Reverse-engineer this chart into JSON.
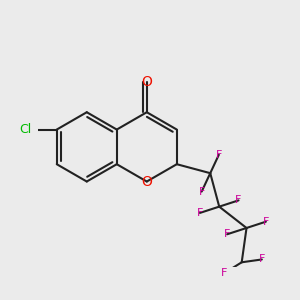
{
  "bg_color": "#ebebeb",
  "bond_color": "#222222",
  "oxygen_color": "#ee1100",
  "chlorine_color": "#00bb00",
  "fluorine_color": "#cc0099",
  "bond_lw": 1.5,
  "figsize": [
    3.0,
    3.0
  ],
  "dpi": 100,
  "xlim": [
    -0.5,
    9.5
  ],
  "ylim": [
    -3.0,
    7.0
  ]
}
